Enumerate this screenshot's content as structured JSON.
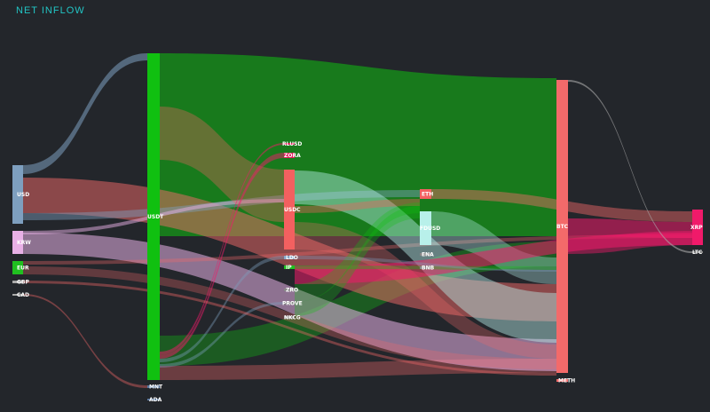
{
  "header": {
    "title": "NET INFLOW"
  },
  "colors": {
    "background": "#23262b",
    "title": "#22c5c5",
    "USD": "#7e9fbf",
    "KRW": "#e8b0e6",
    "EUR": "#20c020",
    "GBP": "#aaaaaa",
    "CAD": "#aaaaaa",
    "USDT": "#10c010",
    "MNT": "#5a78a0",
    "ADA": "#5a78a0",
    "RLUSD": "#e01858",
    "ZORA": "#e01858",
    "USDC": "#f36060",
    "LDO": "#8aa8c8",
    "IP": "#20c020",
    "ZRO": "#888888",
    "PROVE": "#888888",
    "NKCG": "#888888",
    "ETH": "#f36060",
    "FDUSD": "#b8f0ea",
    "ENA": "#888888",
    "BNB": "#888888",
    "BTC": "#f36a6a",
    "METH": "#f36a6a",
    "XRP": "#f01a6a",
    "LTC": "#888888"
  },
  "nodes": [
    {
      "id": "USD",
      "label": "USD"
    },
    {
      "id": "KRW",
      "label": "KRW"
    },
    {
      "id": "EUR",
      "label": "EUR"
    },
    {
      "id": "GBP",
      "label": "GBP"
    },
    {
      "id": "CAD",
      "label": "CAD"
    },
    {
      "id": "USDT",
      "label": "USDT"
    },
    {
      "id": "MNT",
      "label": "MNT"
    },
    {
      "id": "ADA",
      "label": "ADA"
    },
    {
      "id": "RLUSD",
      "label": "RLUSD"
    },
    {
      "id": "ZORA",
      "label": "ZORA"
    },
    {
      "id": "USDC",
      "label": "USDC"
    },
    {
      "id": "LDO",
      "label": "LDO"
    },
    {
      "id": "IP",
      "label": "IP"
    },
    {
      "id": "ZRO",
      "label": "ZRO"
    },
    {
      "id": "PROVE",
      "label": "PROVE"
    },
    {
      "id": "NKCG",
      "label": "NKCG"
    },
    {
      "id": "ETH",
      "label": "ETH"
    },
    {
      "id": "FDUSD",
      "label": "FDUSD"
    },
    {
      "id": "ENA",
      "label": "ENA"
    },
    {
      "id": "BNB",
      "label": "BNB"
    },
    {
      "id": "BTC",
      "label": "BTC"
    },
    {
      "id": "METH",
      "label": "METH"
    },
    {
      "id": "XRP",
      "label": "XRP"
    },
    {
      "id": "LTC",
      "label": "LTC"
    }
  ]
}
